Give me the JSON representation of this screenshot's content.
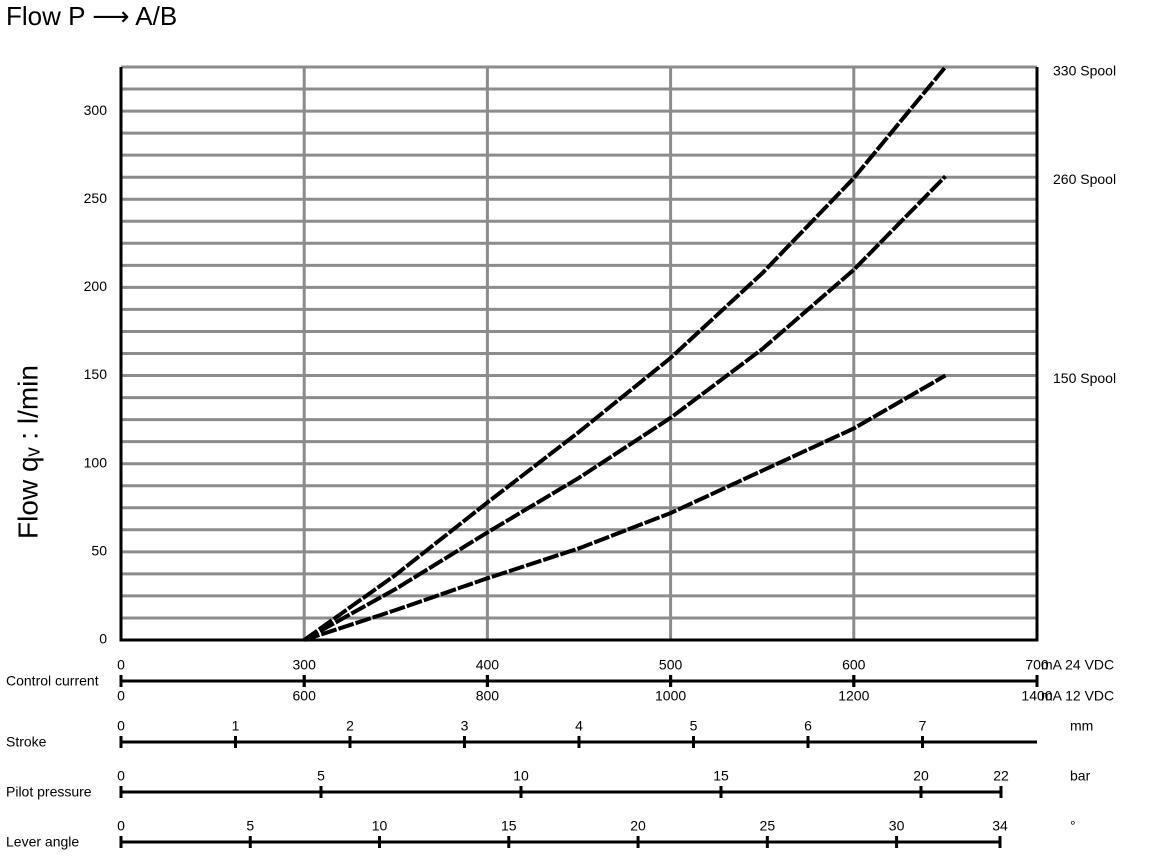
{
  "chart_data": {
    "type": "line",
    "title": "Flow P ⟶ A/B",
    "ylabel": "Flow qᵥ : l/min",
    "xlabel": "Control current",
    "xunit": "mA  24 VDC",
    "x2unit": "mA  12 VDC",
    "x": [
      300,
      350,
      400,
      450,
      500,
      550,
      600,
      650
    ],
    "series": [
      {
        "name": "330 Spool",
        "color": "#000000",
        "values": [
          0,
          37,
          78,
          118,
          160,
          208,
          262,
          325
        ]
      },
      {
        "name": "260 Spool",
        "color": "#000000",
        "values": [
          0,
          29,
          61,
          92,
          126,
          165,
          210,
          263
        ]
      },
      {
        "name": "150 Spool",
        "color": "#000000",
        "values": [
          0,
          17,
          35,
          52,
          72,
          96,
          120,
          150
        ]
      }
    ],
    "xticks": [
      0,
      300,
      400,
      500,
      600,
      700
    ],
    "x2ticks": [
      0,
      600,
      800,
      1000,
      1200,
      1400
    ],
    "ylim": [
      0,
      325
    ],
    "yticks": [
      0,
      50,
      100,
      150,
      200,
      250,
      300
    ],
    "ygrid": [
      0,
      12.5,
      25,
      37.5,
      50,
      62.5,
      75,
      87.5,
      100,
      112.5,
      125,
      137.5,
      150,
      162.5,
      175,
      187.5,
      200,
      212.5,
      225,
      237.5,
      250,
      262.5,
      275,
      287.5,
      300,
      312.5,
      325
    ],
    "grid": true
  },
  "scales": [
    {
      "label": "Stroke",
      "unit": "mm",
      "lim": [
        0,
        8
      ],
      "ticks": [
        0,
        1,
        2,
        3,
        4,
        5,
        6,
        7
      ]
    },
    {
      "label": "Pilot pressure",
      "unit": "bar",
      "lim": [
        0,
        22
      ],
      "ticks": [
        0,
        5,
        10,
        15,
        20,
        22
      ]
    },
    {
      "label": "Lever angle",
      "unit": "°",
      "lim": [
        0,
        34
      ],
      "ticks": [
        0,
        5,
        10,
        15,
        20,
        25,
        30,
        34
      ]
    }
  ]
}
